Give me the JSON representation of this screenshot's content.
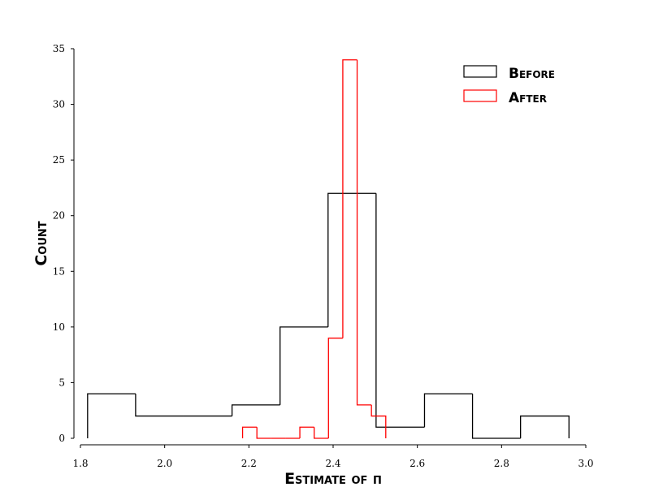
{
  "chart_data": {
    "type": "histogram",
    "xlabel": "Estimate of π",
    "ylabel": "Count",
    "xlim": [
      1.8,
      3.0
    ],
    "ylim": [
      0,
      35
    ],
    "xticks": [
      "1.8",
      "2.0",
      "2.2",
      "2.4",
      "2.6",
      "2.8",
      "3.0"
    ],
    "yticks": [
      "0",
      "5",
      "10",
      "15",
      "20",
      "25",
      "30",
      "35"
    ],
    "legend_position": "top-right",
    "series": [
      {
        "name": "Before",
        "color": "#000000",
        "edges": [
          1.817,
          1.931,
          2.045,
          2.16,
          2.274,
          2.388,
          2.502,
          2.617,
          2.731,
          2.845,
          2.96
        ],
        "counts": [
          4,
          2,
          2,
          3,
          10,
          22,
          1,
          4,
          0,
          2
        ]
      },
      {
        "name": "After",
        "color": "#ff0000",
        "edges": [
          2.185,
          2.219,
          2.253,
          2.287,
          2.321,
          2.355,
          2.389,
          2.423,
          2.457,
          2.491,
          2.525
        ],
        "counts": [
          1,
          0,
          0,
          0,
          1,
          0,
          9,
          34,
          3,
          2
        ]
      }
    ]
  }
}
